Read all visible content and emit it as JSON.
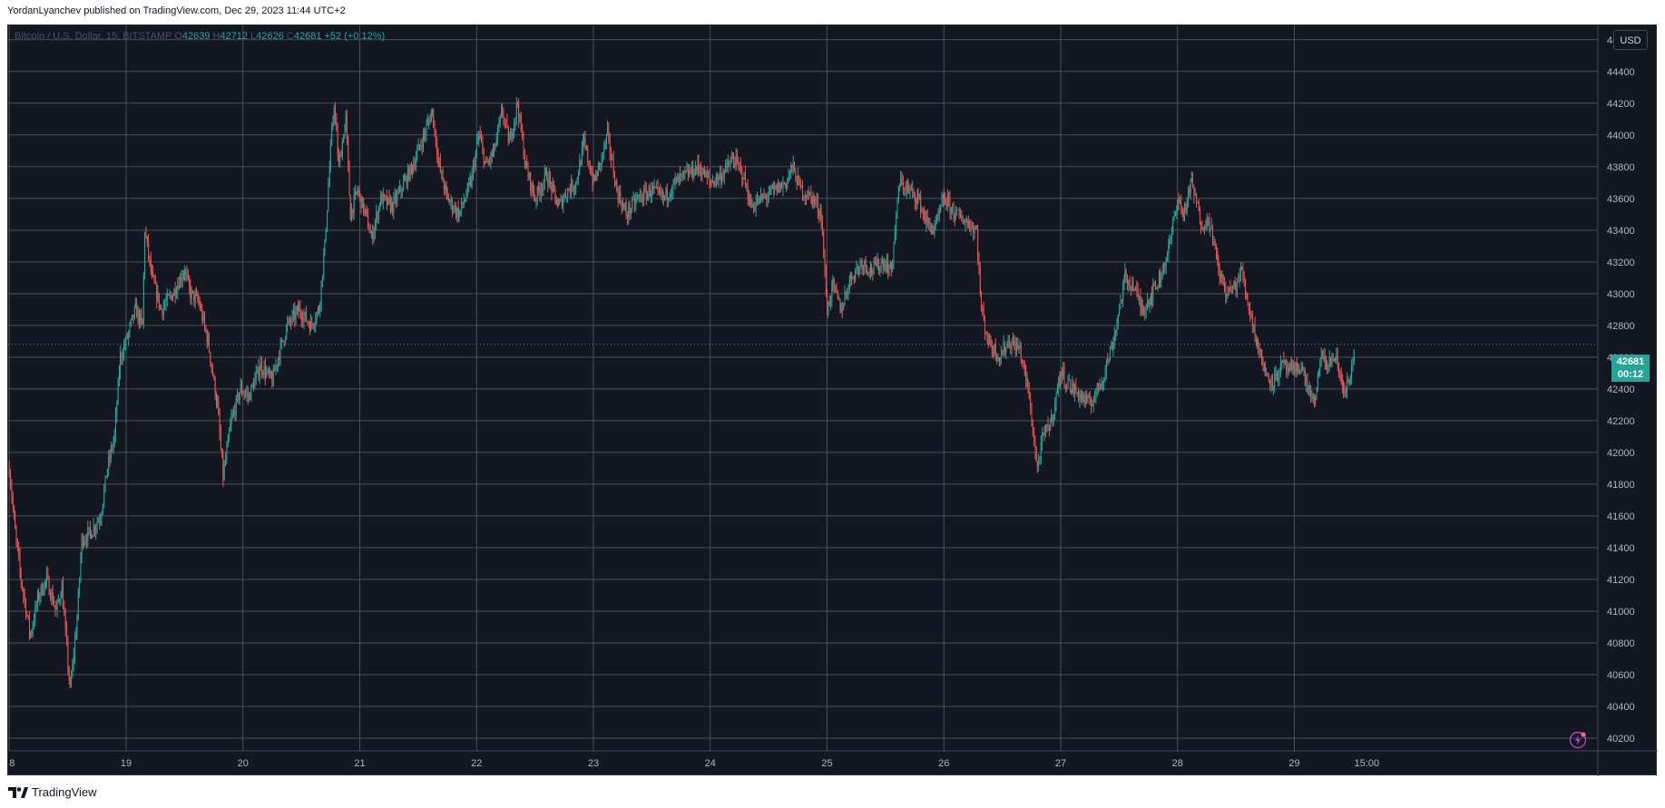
{
  "header": {
    "publish_line": "YordanLyanchev published on TradingView.com, Dec 29, 2023 11:44 UTC+2"
  },
  "legend": {
    "symbol": "Bitcoin / U.S. Dollar, 15, BITSTAMP",
    "o_label": "O",
    "o_value": "42639",
    "h_label": "H",
    "h_value": "42712",
    "l_label": "L",
    "l_value": "42626",
    "c_label": "C",
    "c_value": "42681",
    "change": "+52 (+0.12%)"
  },
  "toolbar": {
    "currency": "USD"
  },
  "last_price": {
    "price": "42681",
    "countdown": "00:12"
  },
  "footer": {
    "brand": "TradingView"
  },
  "colors": {
    "background": "#131722",
    "grid": "#5d606b",
    "up": "#26a69a",
    "down": "#ef5350",
    "axis_text": "#b2b5be",
    "accent_bolt": "#ab47bc"
  },
  "icons": {
    "currency_button": "usd-text",
    "bottom_right": "lightning-bolt-icon",
    "brand_logo": "tradingview-logo-icon"
  },
  "chart_data": {
    "type": "candlestick",
    "grid": true,
    "y_axis_side": "right",
    "ylim": [
      40120,
      44690
    ],
    "yticks": [
      40200,
      40400,
      40600,
      40800,
      41000,
      41200,
      41400,
      41600,
      41800,
      42000,
      42200,
      42400,
      42600,
      42800,
      43000,
      43200,
      43400,
      43600,
      43800,
      44000,
      44200,
      44400,
      44600
    ],
    "xticks": [
      "8",
      "19",
      "20",
      "21",
      "22",
      "23",
      "24",
      "25",
      "26",
      "27",
      "28",
      "29",
      "15:00"
    ],
    "last_value": 42681,
    "series_path": [
      [
        18.0,
        41900
      ],
      [
        18.05,
        41500
      ],
      [
        18.1,
        41200
      ],
      [
        18.18,
        40850
      ],
      [
        18.25,
        41100
      ],
      [
        18.32,
        41200
      ],
      [
        18.4,
        41000
      ],
      [
        18.45,
        41150
      ],
      [
        18.52,
        40500
      ],
      [
        18.58,
        40950
      ],
      [
        18.62,
        41450
      ],
      [
        18.7,
        41500
      ],
      [
        18.78,
        41600
      ],
      [
        18.84,
        41900
      ],
      [
        18.9,
        42100
      ],
      [
        18.95,
        42600
      ],
      [
        19.0,
        42700
      ],
      [
        19.08,
        42900
      ],
      [
        19.14,
        42800
      ],
      [
        19.16,
        43400
      ],
      [
        19.22,
        43100
      ],
      [
        19.3,
        42900
      ],
      [
        19.4,
        43000
      ],
      [
        19.5,
        43150
      ],
      [
        19.55,
        43000
      ],
      [
        19.62,
        42950
      ],
      [
        19.7,
        42700
      ],
      [
        19.78,
        42300
      ],
      [
        19.83,
        41850
      ],
      [
        19.9,
        42200
      ],
      [
        19.98,
        42400
      ],
      [
        20.05,
        42350
      ],
      [
        20.15,
        42550
      ],
      [
        20.25,
        42450
      ],
      [
        20.3,
        42600
      ],
      [
        20.38,
        42800
      ],
      [
        20.48,
        42900
      ],
      [
        20.58,
        42800
      ],
      [
        20.65,
        42900
      ],
      [
        20.7,
        43300
      ],
      [
        20.75,
        43900
      ],
      [
        20.78,
        44200
      ],
      [
        20.82,
        43800
      ],
      [
        20.88,
        44100
      ],
      [
        20.92,
        43500
      ],
      [
        20.98,
        43650
      ],
      [
        21.05,
        43500
      ],
      [
        21.1,
        43350
      ],
      [
        21.18,
        43600
      ],
      [
        21.28,
        43550
      ],
      [
        21.38,
        43700
      ],
      [
        21.45,
        43800
      ],
      [
        21.55,
        44000
      ],
      [
        21.62,
        44150
      ],
      [
        21.68,
        43800
      ],
      [
        21.75,
        43600
      ],
      [
        21.85,
        43500
      ],
      [
        21.95,
        43700
      ],
      [
        22.02,
        44000
      ],
      [
        22.08,
        43800
      ],
      [
        22.15,
        43900
      ],
      [
        22.22,
        44150
      ],
      [
        22.28,
        43950
      ],
      [
        22.35,
        44200
      ],
      [
        22.42,
        43800
      ],
      [
        22.5,
        43600
      ],
      [
        22.6,
        43750
      ],
      [
        22.7,
        43550
      ],
      [
        22.78,
        43650
      ],
      [
        22.85,
        43700
      ],
      [
        22.92,
        43950
      ],
      [
        23.0,
        43700
      ],
      [
        23.05,
        43800
      ],
      [
        23.12,
        44000
      ],
      [
        23.2,
        43650
      ],
      [
        23.28,
        43500
      ],
      [
        23.38,
        43600
      ],
      [
        23.5,
        43650
      ],
      [
        23.6,
        43600
      ],
      [
        23.7,
        43700
      ],
      [
        23.8,
        43750
      ],
      [
        23.9,
        43800
      ],
      [
        24.0,
        43700
      ],
      [
        24.1,
        43750
      ],
      [
        24.2,
        43850
      ],
      [
        24.28,
        43750
      ],
      [
        24.35,
        43550
      ],
      [
        24.45,
        43600
      ],
      [
        24.55,
        43650
      ],
      [
        24.65,
        43700
      ],
      [
        24.7,
        43800
      ],
      [
        24.78,
        43650
      ],
      [
        24.88,
        43600
      ],
      [
        24.95,
        43500
      ],
      [
        25.0,
        42900
      ],
      [
        25.05,
        43050
      ],
      [
        25.12,
        42900
      ],
      [
        25.2,
        43100
      ],
      [
        25.3,
        43200
      ],
      [
        25.38,
        43150
      ],
      [
        25.48,
        43200
      ],
      [
        25.55,
        43150
      ],
      [
        25.62,
        43700
      ],
      [
        25.7,
        43650
      ],
      [
        25.78,
        43600
      ],
      [
        25.85,
        43450
      ],
      [
        25.92,
        43400
      ],
      [
        26.0,
        43600
      ],
      [
        26.1,
        43500
      ],
      [
        26.2,
        43450
      ],
      [
        26.28,
        43400
      ],
      [
        26.32,
        42900
      ],
      [
        26.38,
        42700
      ],
      [
        26.48,
        42600
      ],
      [
        26.55,
        42700
      ],
      [
        26.65,
        42650
      ],
      [
        26.72,
        42400
      ],
      [
        26.8,
        41900
      ],
      [
        26.85,
        42100
      ],
      [
        26.92,
        42200
      ],
      [
        27.0,
        42500
      ],
      [
        27.1,
        42400
      ],
      [
        27.18,
        42350
      ],
      [
        27.25,
        42300
      ],
      [
        27.35,
        42450
      ],
      [
        27.45,
        42700
      ],
      [
        27.55,
        43100
      ],
      [
        27.62,
        43050
      ],
      [
        27.7,
        42900
      ],
      [
        27.78,
        43000
      ],
      [
        27.85,
        43100
      ],
      [
        27.93,
        43300
      ],
      [
        28.0,
        43600
      ],
      [
        28.05,
        43500
      ],
      [
        28.12,
        43700
      ],
      [
        28.2,
        43450
      ],
      [
        28.28,
        43450
      ],
      [
        28.35,
        43150
      ],
      [
        28.42,
        43000
      ],
      [
        28.5,
        43050
      ],
      [
        28.55,
        43150
      ],
      [
        28.6,
        42950
      ],
      [
        28.68,
        42700
      ],
      [
        28.75,
        42500
      ],
      [
        28.82,
        42450
      ],
      [
        28.9,
        42550
      ],
      [
        28.98,
        42500
      ],
      [
        29.05,
        42550
      ],
      [
        29.12,
        42400
      ],
      [
        29.18,
        42300
      ],
      [
        29.22,
        42600
      ],
      [
        29.28,
        42550
      ],
      [
        29.35,
        42600
      ],
      [
        29.42,
        42400
      ],
      [
        29.48,
        42450
      ],
      [
        29.52,
        42681
      ]
    ]
  }
}
